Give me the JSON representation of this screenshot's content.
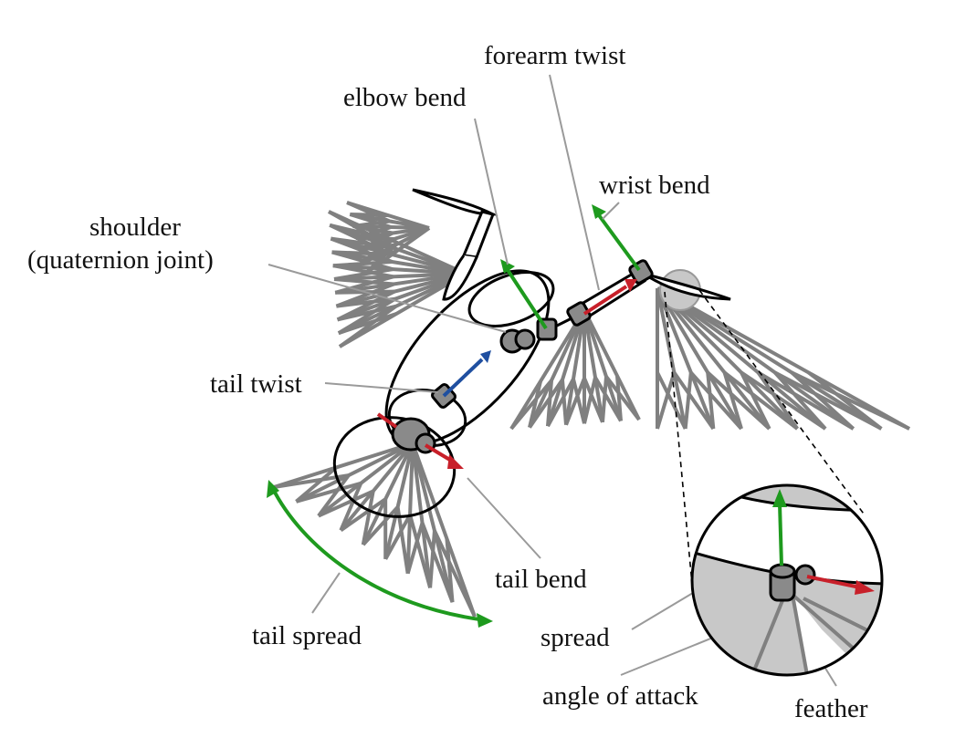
{
  "labels": {
    "forearm_twist": "forearm twist",
    "elbow_bend": "elbow bend",
    "wrist_bend": "wrist bend",
    "shoulder": "shoulder",
    "quaternion_joint": "(quaternion joint)",
    "tail_twist": "tail twist",
    "tail_bend": "tail bend",
    "tail_spread": "tail spread",
    "spread": "spread",
    "angle_of_attack": "angle of attack",
    "feather": "feather"
  },
  "colors": {
    "outline": "#000000",
    "feather": "#808080",
    "leader": "#9a9a9a",
    "joint_fill": "#8a8a8a",
    "inset_fill": "#c8c8c8",
    "green_axis": "#1e9a1e",
    "red_axis": "#c8202a",
    "blue_axis": "#1f4fa0"
  }
}
